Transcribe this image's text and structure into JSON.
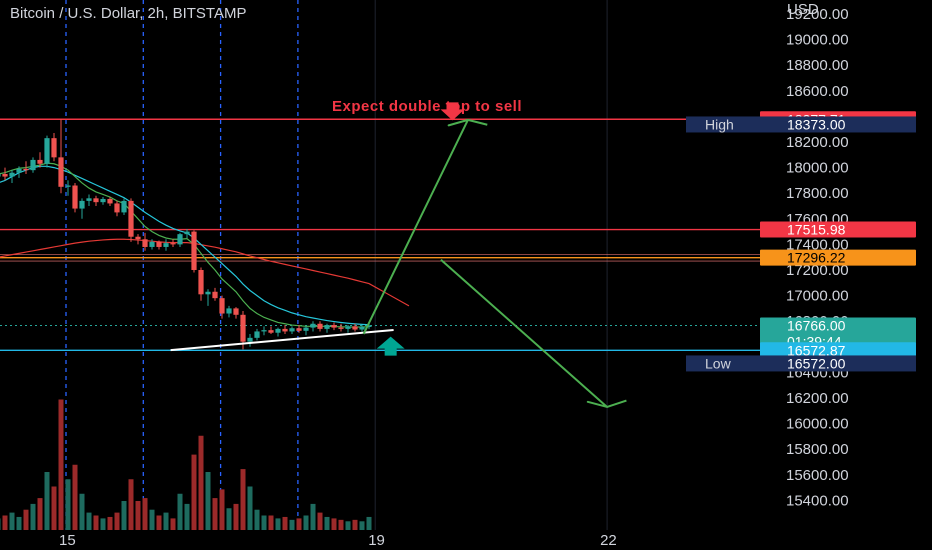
{
  "title": "Bitcoin / U.S. Dollar, 2h, BITSTAMP",
  "currency": "USD",
  "annotation": "Expect double top to sell",
  "colors": {
    "background": "#000000",
    "up": "#26a69a",
    "down": "#ef5350",
    "resistance": "#f23645",
    "orange_level": "#f7931a",
    "support": "#22b8e6",
    "projection": "#4caf50",
    "session_line": "#2962ff",
    "ema_fast": "#4caf50",
    "ema_mid": "#26c6da",
    "ema_slow": "#e53935"
  },
  "axis": {
    "price_ticks": [
      19200,
      19000,
      18800,
      18600,
      18400,
      18200,
      18000,
      17800,
      17600,
      17400,
      17200,
      17000,
      16800,
      16600,
      16400,
      16200,
      16000,
      15800,
      15600,
      15400
    ],
    "price_labels": [
      "19200.00",
      "19000.00",
      "18800.00",
      "18600.00",
      "18400.00",
      "18200.00",
      "18000.00",
      "17800.00",
      "17600.00",
      "17400.00",
      "17200.00",
      "17000.00",
      "16800.00",
      "16600.00",
      "16400.00",
      "16200.00",
      "16000.00",
      "15800.00",
      "15600.00",
      "15400.00"
    ],
    "time_labels": [
      {
        "label": "15",
        "day": 15
      },
      {
        "label": "19",
        "day": 19
      },
      {
        "label": "22",
        "day": 22
      }
    ]
  },
  "levels": [
    {
      "name": "level-high-line",
      "price": 18377.71,
      "label": "18377.71",
      "style": "red"
    },
    {
      "name": "level-17515",
      "price": 17515.98,
      "label": "17515.98",
      "style": "red"
    },
    {
      "name": "level-17296",
      "price": 17296.22,
      "label": "17296.22",
      "style": "orange"
    },
    {
      "name": "level-current",
      "price": 16766.0,
      "label": "16766.00",
      "countdown": "01:39:44",
      "style": "green"
    },
    {
      "name": "level-support",
      "price": 16572.87,
      "label": "16572.87",
      "style": "cyan"
    }
  ],
  "high_marker": {
    "label": "High",
    "value": "18373.00"
  },
  "low_marker": {
    "label": "Low",
    "value": "16572.00"
  },
  "chart_data": {
    "type": "candlestick",
    "symbol": "Bitcoin / U.S. Dollar",
    "interval": "2h",
    "exchange": "BITSTAMP",
    "title": "Bitcoin / U.S. Dollar, 2h, BITSTAMP",
    "ylabel": "USD",
    "ylim": [
      15250,
      19300
    ],
    "xlim_days": [
      14.3,
      23.3
    ],
    "x_tick_labels": [
      "15",
      "19",
      "22"
    ],
    "y_tick_labels": [
      "19200.00",
      "19000.00",
      "18800.00",
      "18600.00",
      "18400.00",
      "18200.00",
      "18000.00",
      "17800.00",
      "17600.00",
      "17400.00",
      "17200.00",
      "17000.00",
      "16800.00",
      "16600.00",
      "16400.00",
      "16200.00",
      "16000.00",
      "15800.00",
      "15600.00",
      "15400.00"
    ],
    "candles": [
      [
        17930,
        17975,
        17890,
        17950,
        8
      ],
      [
        17950,
        18000,
        17900,
        17930,
        10
      ],
      [
        17930,
        17980,
        17880,
        17960,
        12
      ],
      [
        17960,
        18010,
        17920,
        17990,
        9
      ],
      [
        17990,
        18050,
        17950,
        17980,
        14
      ],
      [
        17980,
        18080,
        17960,
        18060,
        18
      ],
      [
        18060,
        18120,
        18000,
        18030,
        22
      ],
      [
        18030,
        18250,
        18000,
        18230,
        40
      ],
      [
        18230,
        18270,
        18050,
        18080,
        30
      ],
      [
        18080,
        18378,
        17800,
        17850,
        90
      ],
      [
        17850,
        17900,
        17780,
        17860,
        35
      ],
      [
        17860,
        17880,
        17650,
        17680,
        45
      ],
      [
        17680,
        17760,
        17600,
        17740,
        25
      ],
      [
        17740,
        17790,
        17700,
        17760,
        12
      ],
      [
        17760,
        17780,
        17700,
        17730,
        10
      ],
      [
        17730,
        17770,
        17710,
        17755,
        8
      ],
      [
        17755,
        17770,
        17700,
        17720,
        9
      ],
      [
        17720,
        17740,
        17620,
        17650,
        12
      ],
      [
        17650,
        17760,
        17630,
        17740,
        20
      ],
      [
        17740,
        17760,
        17420,
        17460,
        35
      ],
      [
        17460,
        17480,
        17400,
        17440,
        20
      ],
      [
        17440,
        17490,
        17350,
        17380,
        22
      ],
      [
        17380,
        17440,
        17360,
        17420,
        14
      ],
      [
        17420,
        17430,
        17360,
        17380,
        10
      ],
      [
        17380,
        17440,
        17350,
        17410,
        12
      ],
      [
        17410,
        17440,
        17380,
        17400,
        8
      ],
      [
        17400,
        17490,
        17380,
        17480,
        25
      ],
      [
        17480,
        17520,
        17450,
        17500,
        18
      ],
      [
        17500,
        17510,
        17180,
        17200,
        52
      ],
      [
        17200,
        17220,
        16960,
        17010,
        65
      ],
      [
        17010,
        17050,
        16920,
        17030,
        40
      ],
      [
        17030,
        17060,
        16960,
        16980,
        22
      ],
      [
        16980,
        17000,
        16820,
        16860,
        28
      ],
      [
        16860,
        16920,
        16830,
        16900,
        15
      ],
      [
        16900,
        16910,
        16820,
        16850,
        18
      ],
      [
        16850,
        16880,
        16580,
        16640,
        42
      ],
      [
        16640,
        16700,
        16600,
        16670,
        30
      ],
      [
        16670,
        16740,
        16650,
        16720,
        14
      ],
      [
        16720,
        16760,
        16690,
        16730,
        10
      ],
      [
        16730,
        16760,
        16700,
        16710,
        10
      ],
      [
        16710,
        16750,
        16680,
        16740,
        8
      ],
      [
        16740,
        16770,
        16700,
        16720,
        9
      ],
      [
        16720,
        16760,
        16700,
        16745,
        7
      ],
      [
        16745,
        16770,
        16710,
        16725,
        8
      ],
      [
        16725,
        16760,
        16690,
        16750,
        10
      ],
      [
        16750,
        16800,
        16720,
        16780,
        18
      ],
      [
        16780,
        16800,
        16720,
        16740,
        12
      ],
      [
        16740,
        16780,
        16710,
        16770,
        9
      ],
      [
        16770,
        16790,
        16730,
        16750,
        8
      ],
      [
        16750,
        16780,
        16720,
        16740,
        7
      ],
      [
        16740,
        16770,
        16710,
        16760,
        6
      ],
      [
        16760,
        16780,
        16720,
        16735,
        7
      ],
      [
        16735,
        16770,
        16720,
        16755,
        6
      ],
      [
        16755,
        16790,
        16740,
        16766,
        9
      ]
    ],
    "volume_note": "relative volume per candle (last element of each candle row)",
    "ema_fast": [
      17950,
      17960,
      17980,
      17995,
      18000,
      18010,
      18020,
      18035,
      18030,
      18010,
      17980,
      17930,
      17880,
      17840,
      17810,
      17790,
      17770,
      17740,
      17720,
      17660,
      17600,
      17540,
      17500,
      17470,
      17450,
      17440,
      17440,
      17445,
      17400,
      17330,
      17260,
      17200,
      17130,
      17080,
      17030,
      16960,
      16900,
      16860,
      16830,
      16810,
      16790,
      16780,
      16770,
      16765,
      16760,
      16760,
      16760,
      16760,
      16758,
      16756,
      16755,
      16754,
      16755,
      16757
    ],
    "ema_mid": [
      17880,
      17900,
      17930,
      17960,
      17980,
      18000,
      18010,
      18010,
      18000,
      17985,
      17965,
      17940,
      17915,
      17890,
      17865,
      17840,
      17815,
      17790,
      17765,
      17730,
      17690,
      17650,
      17615,
      17580,
      17550,
      17525,
      17505,
      17490,
      17450,
      17400,
      17350,
      17300,
      17250,
      17200,
      17150,
      17090,
      17040,
      17000,
      16960,
      16930,
      16905,
      16885,
      16865,
      16850,
      16835,
      16825,
      16815,
      16805,
      16797,
      16790,
      16784,
      16779,
      16775,
      16772
    ],
    "ema_slow": [
      17300,
      17310,
      17320,
      17330,
      17340,
      17350,
      17360,
      17370,
      17380,
      17390,
      17400,
      17410,
      17418,
      17425,
      17430,
      17435,
      17438,
      17440,
      17440,
      17438,
      17434,
      17430,
      17425,
      17420,
      17416,
      17414,
      17414,
      17414,
      17408,
      17398,
      17388,
      17378,
      17366,
      17354,
      17342,
      17326,
      17310,
      17296,
      17282,
      17268,
      17256,
      17244,
      17232,
      17220,
      17208,
      17196,
      17184,
      17172,
      17160,
      17148,
      17136,
      17122,
      17108,
      17094
    ],
    "session_lines_days": [
      15.0,
      16.0,
      17.0,
      18.0
    ],
    "trendline": [
      [
        17.0,
        16590
      ],
      [
        18.85,
        16700
      ]
    ],
    "projection_path": [
      [
        18.85,
        16700
      ],
      [
        20.2,
        18373
      ],
      [
        19.95,
        18330
      ],
      [
        20.2,
        18373
      ],
      [
        20.45,
        18335
      ]
    ],
    "projection_down_path": [
      [
        19.85,
        17280
      ],
      [
        22.0,
        16130
      ],
      [
        21.75,
        16170
      ],
      [
        22.0,
        16130
      ],
      [
        22.25,
        16180
      ]
    ],
    "arrow_down_at": [
      20.0,
      18400
    ],
    "arrow_up_at": [
      19.2,
      16640
    ]
  }
}
